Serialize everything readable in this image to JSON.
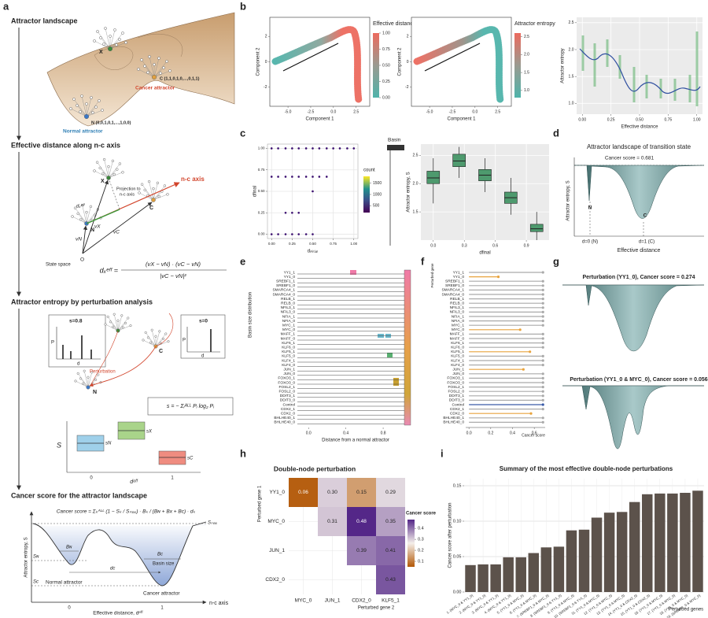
{
  "figure": {
    "a": {
      "label": "a",
      "headings": [
        "Attractor landscape",
        "Effective distance along n-c axis",
        "Attractor entropy by perturbation analysis",
        "Cancer score for the attractor landscape"
      ],
      "landscape": {
        "x": "X",
        "c_state": "C (1,1,0,1,0,...,0,1,1)",
        "n_state": "N (0,0,1,0,1,...,1,0,0)",
        "cancer": "Cancer attractor",
        "normal": "Normal attractor"
      },
      "projection": {
        "x": "X",
        "c": "C",
        "n": "N",
        "o": "O",
        "axis": "n-c axis",
        "projection": [
          "Projection to",
          "n-c axis"
        ],
        "deff": "dₓᵉᶠᶠ",
        "vx": "vX",
        "vn": "vN",
        "vc": "vC",
        "state_space": "State space",
        "lhs": "dₓᵉᶠᶠ =",
        "num": "(vX − vN) · (vC − vN)",
        "den": "|vC − vN|²"
      },
      "entropy": {
        "s_left": "s=0.8",
        "s_right": "s=0",
        "p": "P",
        "d": "d",
        "perturbation": "Perturbation",
        "n": "N",
        "c": "C",
        "formula": "s = − Σᵢᴬᴸᴸ Pᵢ log₂ Pᵢ",
        "s_axis": "S",
        "x_axis": "dᵉᶠᶠ",
        "tick0": "0",
        "tick1": "1",
        "sn": "sN",
        "sx": "sX",
        "sc": "sC"
      },
      "score": {
        "formula": "Cancer score = Σₖᴬᴸᴸ (1 − Sₖ / Sₘₐₓ) · Bₖ / (Bɴ + Bх + Bᴄ) · dₖ",
        "smax": "Sₘₐₓ",
        "sn": "Sɴ",
        "sc": "Sᴄ",
        "bn": "Bɴ",
        "bc": "Bᴄ",
        "basin": "Basin size",
        "dc": "dᴄ",
        "normal": "Normal attractor",
        "cancer": "Cancer attractor",
        "y_axis": "Attractor entropy, S",
        "x_axis": "Effective distance, dᵉᶠᶠ",
        "axis_end": "n-c axis",
        "tick0": "0",
        "tick1": "1"
      }
    },
    "b": {
      "label": "b",
      "plots": [
        {
          "title": "Effective distance",
          "x_label": "Component 1",
          "y_label": "Component 2",
          "xlim": [
            -7,
            4
          ],
          "ylim": [
            -3.5,
            3.5
          ],
          "xticks": [
            {
              "value": -5,
              "label": "-5.0"
            },
            {
              "value": -2.5,
              "label": "-2.5"
            },
            {
              "value": 0,
              "label": "0.0"
            },
            {
              "value": 2.5,
              "label": "2.5"
            }
          ],
          "yticks": [
            -2,
            0,
            2
          ],
          "clim": [
            0,
            1
          ],
          "cticks": [
            {
              "value": 1,
              "label": "1.00"
            },
            {
              "value": 0.75,
              "label": "0.75"
            },
            {
              "value": 0.5,
              "label": "0.50"
            },
            {
              "value": 0.25,
              "label": "0.25"
            },
            {
              "value": 0,
              "label": "0.00"
            }
          ]
        },
        {
          "title": "Attractor entropy",
          "x_label": "Component 1",
          "y_label": "Component 2",
          "xlim": [
            -7,
            4
          ],
          "ylim": [
            -3.5,
            3.5
          ],
          "xticks": [
            {
              "value": -5,
              "label": "-5.0"
            },
            {
              "value": -2.5,
              "label": "-2.5"
            },
            {
              "value": 0,
              "label": "0.0"
            },
            {
              "value": 2.5,
              "label": "2.5"
            }
          ],
          "yticks": [
            -2,
            0,
            2
          ],
          "clim": [
            0.8,
            2.6
          ],
          "cticks": [
            {
              "value": 2.5,
              "label": "2.5"
            },
            {
              "value": 2,
              "label": "2.0"
            },
            {
              "value": 1.5,
              "label": "1.5"
            },
            {
              "value": 1,
              "label": "1.0"
            }
          ]
        }
      ],
      "trend": {
        "x_label": "Effective distance",
        "y_label": "Attractor entropy",
        "xlim": [
          -0.05,
          1.05
        ],
        "ylim": [
          0.8,
          2.6
        ],
        "xticks": [
          {
            "value": 0,
            "label": "0.00"
          },
          {
            "value": 0.25,
            "label": "0.25"
          },
          {
            "value": 0.5,
            "label": "0.50"
          },
          {
            "value": 0.75,
            "label": "0.75"
          },
          {
            "value": 1,
            "label": "1.00"
          }
        ],
        "yticks": [
          {
            "value": 1,
            "label": "1.0"
          },
          {
            "value": 1.5,
            "label": "1.5"
          },
          {
            "value": 2,
            "label": "2.0"
          },
          {
            "value": 2.5,
            "label": "2.5"
          }
        ]
      }
    },
    "c": {
      "label": "c",
      "dots": {
        "x_label": "dᵢₙᵢₜᵢₐₗ",
        "y_label": "dfinal",
        "xlim": [
          -0.05,
          1.05
        ],
        "ylim": [
          -0.05,
          1.05
        ],
        "xticks": [
          {
            "value": 0,
            "label": "0.00"
          },
          {
            "value": 0.25,
            "label": "0.25"
          },
          {
            "value": 0.5,
            "label": "0.50"
          },
          {
            "value": 0.75,
            "label": "0.75"
          },
          {
            "value": 1,
            "label": "1.00"
          }
        ],
        "yticks": [
          {
            "value": 0,
            "label": "0.00"
          },
          {
            "value": 0.25,
            "label": "0.25"
          },
          {
            "value": 0.5,
            "label": "0.50"
          },
          {
            "value": 0.75,
            "label": "0.75"
          },
          {
            "value": 1,
            "label": "1.00"
          }
        ],
        "rows": [
          {
            "d_final": 1.0,
            "d_initial": [
              0,
              0.08,
              0.17,
              0.25,
              0.33,
              0.42,
              0.5,
              0.58,
              0.67,
              0.75,
              0.83,
              0.92,
              1.0
            ]
          },
          {
            "d_final": 0.67,
            "d_initial": [
              0,
              0.08,
              0.17,
              0.25,
              0.33,
              0.42,
              0.5,
              0.58,
              0.67
            ]
          },
          {
            "d_final": 0.5,
            "d_initial": [
              0.5
            ]
          },
          {
            "d_final": 0.25,
            "d_initial": [
              0.17,
              0.25,
              0.33
            ]
          },
          {
            "d_final": 0.0,
            "d_initial": [
              0,
              0.08,
              0.17,
              0.25,
              0.33,
              0.42,
              0.5
            ]
          }
        ],
        "color": "#3b0f70",
        "legend_title": "count",
        "clim": [
          200,
          1800
        ],
        "cticks": [
          1500,
          1000,
          500
        ],
        "basin": "Basin"
      },
      "box": {
        "x_label": "dfinal",
        "y_label": "Attractor entropy, S",
        "xlim": [
          -0.12,
          1.12
        ],
        "ylim": [
          1.0,
          2.7
        ],
        "xticks": [
          {
            "value": 0,
            "label": "0.0"
          },
          {
            "value": 0.3,
            "label": "0.3"
          },
          {
            "value": 0.6,
            "label": "0.6"
          },
          {
            "value": 0.9,
            "label": "0.9"
          }
        ],
        "yticks": [
          {
            "value": 1.5,
            "label": "1.5"
          },
          {
            "value": 2,
            "label": "2.0"
          },
          {
            "value": 2.5,
            "label": "2.5"
          }
        ],
        "x": [
          0,
          0.25,
          0.5,
          0.75,
          1.0
        ],
        "color": "#4e9a6e",
        "min": [
          1.65,
          2.1,
          1.85,
          1.45,
          1.0
        ],
        "q1": [
          2.0,
          2.3,
          2.05,
          1.65,
          1.15
        ],
        "median": [
          2.1,
          2.4,
          2.15,
          1.75,
          1.2
        ],
        "q3": [
          2.22,
          2.52,
          2.25,
          1.85,
          1.28
        ],
        "max": [
          2.45,
          2.65,
          2.45,
          2.1,
          1.5
        ]
      }
    },
    "d": {
      "label": "d",
      "title": "Attractor landscape of transition state",
      "score": "Cancer score = 0.681",
      "y_label": "Attractor entropy, S",
      "x_label": "Effective distance",
      "n": "N",
      "c": "C",
      "d0": "d=0 (N)",
      "d1": "d=1 (C)"
    },
    "e": {
      "label": "e",
      "y_label": "Basin size distribution",
      "x_label": "Distance from a normal attractor",
      "xlim": [
        -0.12,
        1.12
      ],
      "xticks": [
        {
          "value": 0,
          "label": "0.0"
        },
        {
          "value": 0.4,
          "label": "0.4"
        },
        {
          "value": 0.8,
          "label": "0.8"
        }
      ],
      "genes": [
        "YY1_1",
        "YY1_0",
        "SREBF1_1",
        "SREBF1_0",
        "SMARCA4_1",
        "SMARCA4_0",
        "RELB_1",
        "RELB_0",
        "NFIL3_1",
        "NFIL3_0",
        "NFIA_1",
        "NFIA_0",
        "MYC_1",
        "MYC_0",
        "MAFF_1",
        "MAFF_0",
        "KLF6_1",
        "KLF6_0",
        "KLF5_1",
        "KLF5_0",
        "KLF4_1",
        "KLF4_0",
        "JUN_1",
        "JUN_0",
        "FOXO3_1",
        "FOXO3_0",
        "FOSL2_1",
        "FOSL2_0",
        "DDIT3_1",
        "DDIT3_0",
        "Control",
        "CDX2_1",
        "CDX2_0",
        "BHLHE40_1",
        "BHLHE40_0"
      ]
    },
    "f": {
      "label": "f",
      "y_label": "Perturbed gene",
      "x_label": "Cancer score",
      "xlim": [
        -0.03,
        0.7
      ],
      "xticks": [
        {
          "value": 0,
          "label": "0.0"
        },
        {
          "value": 0.2,
          "label": "0.2"
        },
        {
          "value": 0.4,
          "label": "0.4"
        },
        {
          "value": 0.6,
          "label": "0.6"
        }
      ],
      "genes": [
        "YY1_1",
        "YY1_0",
        "SREBF1_1",
        "SREBF1_0",
        "SMARCA4_1",
        "SMARCA4_0",
        "RELB_1",
        "RELB_0",
        "NFIL3_1",
        "NFIL3_0",
        "NFIA_1",
        "NFIA_0",
        "MYC_1",
        "MYC_0",
        "MAFF_1",
        "MAFF_0",
        "KLF6_1",
        "KLF6_0",
        "KLF5_1",
        "KLF5_0",
        "KLF4_1",
        "KLF4_0",
        "JUN_1",
        "JUN_0",
        "FOXO3_1",
        "FOXO3_0",
        "FOSL2_1",
        "FOSL2_0",
        "DDIT3_1",
        "DDIT3_0",
        "Control",
        "CDX2_1",
        "CDX2_0",
        "BHLHE40_1",
        "BHLHE40_0"
      ],
      "values": [
        0.68,
        0.27,
        0.68,
        0.68,
        0.68,
        0.68,
        0.68,
        0.68,
        0.68,
        0.68,
        0.68,
        0.68,
        0.68,
        0.47,
        0.68,
        0.68,
        0.68,
        0.68,
        0.56,
        0.68,
        0.68,
        0.68,
        0.5,
        0.68,
        0.68,
        0.68,
        0.68,
        0.68,
        0.68,
        0.68,
        0.68,
        0.68,
        0.57,
        0.68,
        0.68
      ],
      "colors": [
        "#aaaaaa",
        "#e8a33d",
        "#aaaaaa",
        "#aaaaaa",
        "#aaaaaa",
        "#aaaaaa",
        "#aaaaaa",
        "#aaaaaa",
        "#aaaaaa",
        "#aaaaaa",
        "#aaaaaa",
        "#aaaaaa",
        "#aaaaaa",
        "#e8a33d",
        "#aaaaaa",
        "#aaaaaa",
        "#aaaaaa",
        "#aaaaaa",
        "#e8a33d",
        "#aaaaaa",
        "#aaaaaa",
        "#aaaaaa",
        "#e8a33d",
        "#aaaaaa",
        "#aaaaaa",
        "#aaaaaa",
        "#aaaaaa",
        "#aaaaaa",
        "#aaaaaa",
        "#aaaaaa",
        "#3b5ba8",
        "#aaaaaa",
        "#e8a33d",
        "#aaaaaa",
        "#aaaaaa"
      ]
    },
    "g": {
      "label": "g",
      "titles": [
        "Perturbation (YY1_0), Cancer score = 0.274",
        "Perturbation (YY1_0 & MYC_0), Cancer score = 0.056"
      ]
    },
    "h": {
      "label": "h",
      "title": "Double-node perturbation",
      "row_label": "Perturbed gene 1",
      "col_label": "Perturbed gene 2",
      "rows": [
        "YY1_0",
        "MYC_0",
        "JUN_1",
        "CDX2_0"
      ],
      "cols": [
        "MYC_0",
        "JUN_1",
        "CDX2_0",
        "KLF5_1"
      ],
      "values": [
        [
          0.06,
          0.3,
          0.15,
          0.29
        ],
        [
          null,
          0.31,
          0.48,
          0.35
        ],
        [
          null,
          null,
          0.39,
          0.41
        ],
        [
          null,
          null,
          null,
          0.43
        ]
      ],
      "value_labels": [
        [
          "0.06",
          "0.30",
          "0.15",
          "0.29"
        ],
        [
          null,
          "0.31",
          "0.48",
          "0.35"
        ],
        [
          null,
          null,
          "0.39",
          "0.41"
        ],
        [
          null,
          null,
          null,
          "0.43"
        ]
      ],
      "legend_title": "Cancer score",
      "colorlim": [
        0.05,
        0.48
      ],
      "colorscale": [
        "#b35806",
        "#f4efea",
        "#542788"
      ],
      "cticks": [
        0.4,
        0.3,
        0.2,
        0.1
      ]
    },
    "i": {
      "label": "i",
      "type": "bar",
      "title": "Summary of the most effective double-node perturbations",
      "y_label": "Cancer score after perturbation",
      "x_label": "Perturbed genes",
      "color": "#5c524b",
      "categories": [
        "1. (MYC_0 & YY1_0)",
        "2. (MYC_0 & YY1_0)",
        "3. (MYC_0 & YY1_0)",
        "4. (MYC_0 & YY1_0)",
        "5. (YY1_0 & MYC_0)",
        "6. (YY1_0 & MYC_0)",
        "7. (SREBF1_0 & MYC_0)",
        "8. (SREBF1_0 & YY1_0)",
        "9. (YY1_0 & MYC_0)",
        "10. (SREBF1_0 & YY1_0)",
        "11. (YY1_0 & MYC_0)",
        "12. (YY1_0 & MYC_0)",
        "13. (YY1_0 & MYC_0)",
        "14. (YY1_0 & CDX2_0)",
        "15. (YY1_0 & CDX2_0)",
        "16. (YY1_0 & MYC_0)",
        "17. (YY1_0 & MYC_0)",
        "18. (YY1_0 & MYC_0)",
        "19. (SREBF1_0 & MYC_0)"
      ],
      "values": [
        0.038,
        0.039,
        0.039,
        0.049,
        0.049,
        0.055,
        0.063,
        0.064,
        0.087,
        0.088,
        0.105,
        0.112,
        0.113,
        0.127,
        0.138,
        0.139,
        0.139,
        0.14,
        0.143
      ],
      "ylim": [
        0,
        0.16
      ],
      "yticks": [
        {
          "value": 0,
          "label": "0.00"
        },
        {
          "value": 0.05,
          "label": "0.05"
        },
        {
          "value": 0.1,
          "label": "0.10"
        },
        {
          "value": 0.15,
          "label": "0.15"
        }
      ],
      "grid": true
    }
  }
}
